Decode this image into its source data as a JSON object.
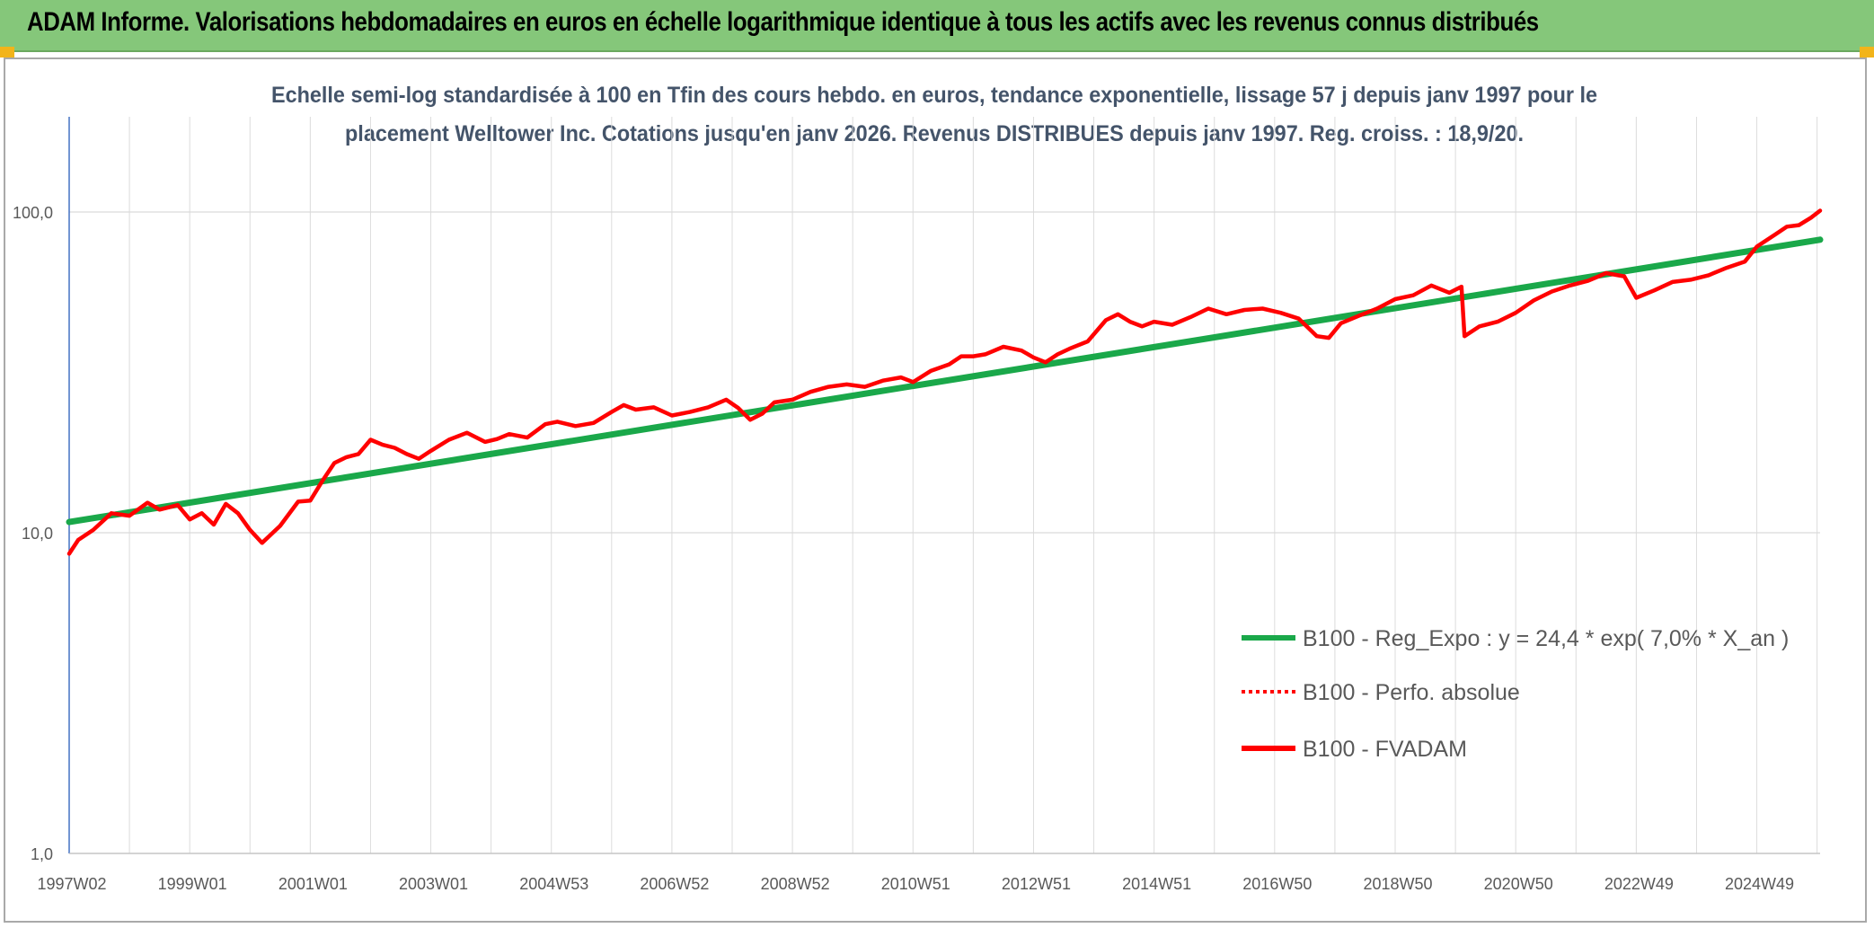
{
  "banner": {
    "title": "ADAM Informe. Valorisations hebdomadaires en euros en échelle logarithmique identique à tous les actifs avec les revenus connus distribués",
    "color": "#85c77a"
  },
  "chart_data": {
    "type": "line",
    "subtitle_line1": "Echelle semi-log standardisée à 100 en Tfin des cours hebdo. en euros, tendance exponentielle, lissage 57 j depuis janv 1997 pour le",
    "subtitle_line2": "placement Welltower Inc. Cotations jusqu'en janv 2026. Revenus DISTRIBUES depuis janv 1997. Reg. croiss. : 18,9/20.",
    "y_scale": "log",
    "ylim": [
      1,
      200
    ],
    "y_ticks": [
      {
        "value": 1,
        "label": "1,0"
      },
      {
        "value": 10,
        "label": "10,0"
      },
      {
        "value": 100,
        "label": "100,0"
      }
    ],
    "x_range": [
      1997.0,
      2026.05
    ],
    "x_ticks": [
      {
        "t": 1997.0,
        "label": "1997W02"
      },
      {
        "t": 1999.0,
        "label": "1999W01"
      },
      {
        "t": 2001.0,
        "label": "2001W01"
      },
      {
        "t": 2003.0,
        "label": "2003W01"
      },
      {
        "t": 2005.0,
        "label": "2004W53"
      },
      {
        "t": 2007.0,
        "label": "2006W52"
      },
      {
        "t": 2009.0,
        "label": "2008W52"
      },
      {
        "t": 2011.0,
        "label": "2010W51"
      },
      {
        "t": 2013.0,
        "label": "2012W51"
      },
      {
        "t": 2015.0,
        "label": "2014W51"
      },
      {
        "t": 2017.0,
        "label": "2016W50"
      },
      {
        "t": 2019.0,
        "label": "2018W50"
      },
      {
        "t": 2021.0,
        "label": "2020W50"
      },
      {
        "t": 2023.0,
        "label": "2022W49"
      },
      {
        "t": 2025.0,
        "label": "2024W49"
      }
    ],
    "grid": true,
    "legend_position": "right",
    "series": [
      {
        "name": "B100 - Reg_Expo : y = 24,4 * exp( 7,0% * X_an )",
        "color": "#1aa84a",
        "style": "solid",
        "x": [
          1997.0,
          2026.05
        ],
        "y": [
          10.8,
          82.0
        ]
      },
      {
        "name": "B100 - Perfo. absolue",
        "color": "#ff0000",
        "style": "dotted",
        "x": [],
        "y": []
      },
      {
        "name": "B100 - FVADAM",
        "color": "#ff0000",
        "style": "solid",
        "x": [
          1997.0,
          1997.15,
          1997.4,
          1997.7,
          1998.0,
          1998.3,
          1998.5,
          1998.8,
          1999.0,
          1999.2,
          1999.4,
          1999.6,
          1999.8,
          2000.0,
          2000.2,
          2000.5,
          2000.8,
          2001.0,
          2001.2,
          2001.4,
          2001.6,
          2001.8,
          2002.0,
          2002.2,
          2002.4,
          2002.6,
          2002.8,
          2003.0,
          2003.3,
          2003.6,
          2003.9,
          2004.1,
          2004.3,
          2004.6,
          2004.9,
          2005.1,
          2005.4,
          2005.7,
          2006.0,
          2006.2,
          2006.4,
          2006.7,
          2007.0,
          2007.3,
          2007.6,
          2007.9,
          2008.1,
          2008.3,
          2008.5,
          2008.7,
          2009.0,
          2009.3,
          2009.6,
          2009.9,
          2010.2,
          2010.5,
          2010.8,
          2011.0,
          2011.3,
          2011.6,
          2011.8,
          2012.0,
          2012.2,
          2012.5,
          2012.8,
          2013.0,
          2013.2,
          2013.4,
          2013.6,
          2013.9,
          2014.2,
          2014.4,
          2014.6,
          2014.8,
          2015.0,
          2015.3,
          2015.6,
          2015.9,
          2016.2,
          2016.5,
          2016.8,
          2017.1,
          2017.4,
          2017.7,
          2017.9,
          2018.1,
          2018.4,
          2018.7,
          2019.0,
          2019.3,
          2019.6,
          2019.9,
          2020.1,
          2020.15,
          2020.4,
          2020.7,
          2021.0,
          2021.3,
          2021.6,
          2021.9,
          2022.2,
          2022.5,
          2022.8,
          2023.0,
          2023.3,
          2023.6,
          2023.9,
          2024.2,
          2024.5,
          2024.8,
          2025.0,
          2025.3,
          2025.5,
          2025.7,
          2025.9,
          2026.05
        ],
        "y": [
          8.6,
          9.5,
          10.2,
          11.5,
          11.3,
          12.4,
          11.8,
          12.2,
          11.0,
          11.5,
          10.6,
          12.3,
          11.5,
          10.2,
          9.3,
          10.5,
          12.5,
          12.6,
          14.5,
          16.5,
          17.2,
          17.6,
          19.5,
          18.8,
          18.4,
          17.6,
          17.0,
          18.0,
          19.5,
          20.5,
          19.2,
          19.6,
          20.3,
          19.8,
          21.8,
          22.2,
          21.5,
          22.0,
          23.8,
          25.0,
          24.2,
          24.6,
          23.2,
          23.8,
          24.6,
          26.0,
          24.5,
          22.5,
          23.5,
          25.5,
          26.0,
          27.5,
          28.5,
          29.0,
          28.5,
          29.8,
          30.5,
          29.5,
          32.0,
          33.5,
          35.5,
          35.5,
          36.0,
          38.0,
          37.0,
          35.2,
          34.0,
          36.0,
          37.5,
          39.5,
          46.0,
          48.0,
          45.5,
          44.0,
          45.5,
          44.5,
          47.0,
          50.0,
          48.0,
          49.5,
          50.0,
          48.5,
          46.5,
          41.0,
          40.5,
          45.0,
          47.5,
          50.0,
          53.5,
          55.0,
          59.0,
          56.0,
          58.5,
          41.0,
          44.0,
          45.5,
          48.5,
          53.0,
          56.5,
          59.0,
          61.0,
          64.5,
          63.0,
          54.0,
          57.0,
          60.5,
          61.5,
          63.5,
          67.0,
          70.0,
          78.0,
          85.0,
          90.0,
          91.0,
          96.0,
          101.0
        ]
      }
    ]
  }
}
